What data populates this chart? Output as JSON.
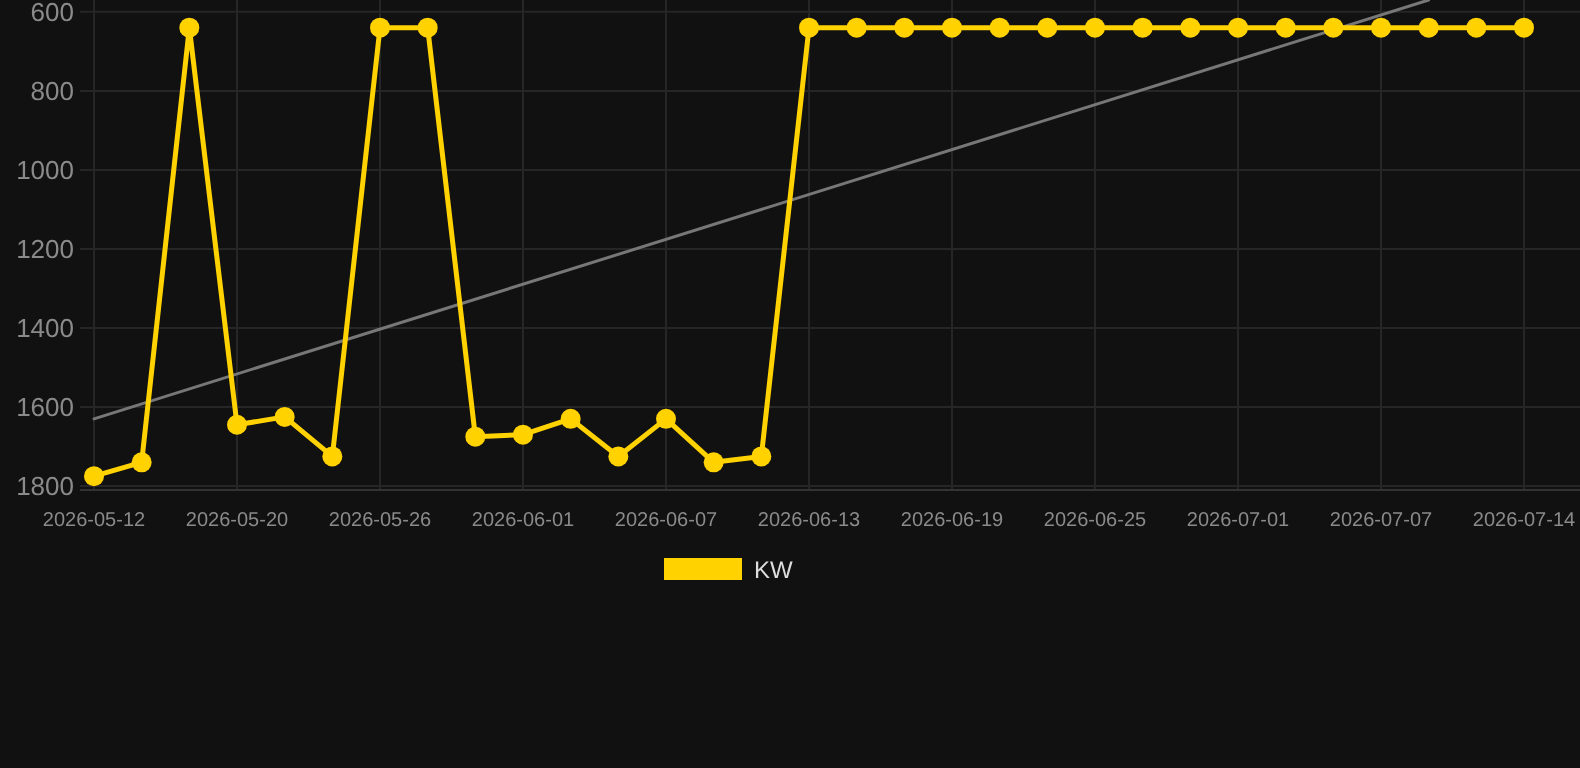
{
  "chart_data": {
    "type": "line",
    "categories": [
      "2026-05-12",
      null,
      null,
      "2026-05-20",
      null,
      null,
      "2026-05-26",
      null,
      null,
      "2026-06-01",
      null,
      null,
      "2026-06-07",
      null,
      null,
      "2026-06-13",
      null,
      null,
      "2026-06-19",
      null,
      null,
      "2026-06-25",
      null,
      null,
      "2026-07-01",
      null,
      null,
      "2026-07-07",
      null,
      null,
      "2026-07-14"
    ],
    "series": [
      {
        "name": "KW",
        "color": "#ffd200",
        "marker": "circle",
        "values": [
          1775,
          1740,
          640,
          1645,
          1625,
          1725,
          640,
          640,
          1675,
          1670,
          1630,
          1725,
          1630,
          1740,
          1725,
          640,
          640,
          640,
          640,
          640,
          640,
          640,
          640,
          640,
          640,
          640,
          640,
          640,
          640,
          640,
          640
        ]
      },
      {
        "type": "line",
        "color": "#777777",
        "marker": "none",
        "values": [
          1630,
          null,
          null,
          null,
          null,
          null,
          null,
          null,
          null,
          null,
          null,
          null,
          null,
          null,
          null,
          null,
          null,
          null,
          null,
          null,
          null,
          null,
          null,
          null,
          null,
          null,
          null,
          null,
          570,
          null,
          null
        ]
      }
    ],
    "ylim": [
      1810,
      570
    ],
    "yticks": [
      600,
      800,
      1000,
      1200,
      1400,
      1600,
      1800
    ],
    "grid": true,
    "legend": "bottom"
  }
}
